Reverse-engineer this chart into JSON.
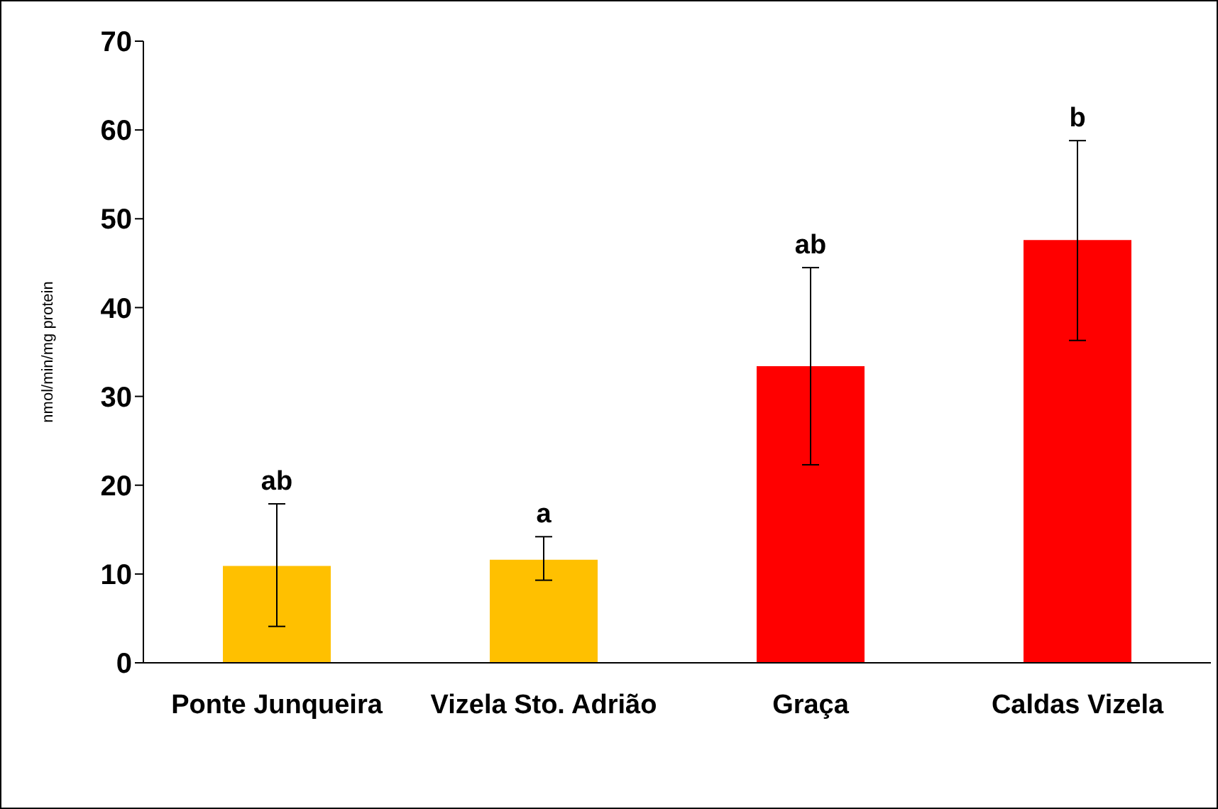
{
  "chart_data": {
    "type": "bar",
    "ylabel": "nmol/min/mg protein",
    "categories": [
      "Ponte Junqueira",
      "Vizela Sto. Adrião",
      "Graça",
      "Caldas Vizela"
    ],
    "values": [
      10.9,
      11.6,
      33.4,
      47.6
    ],
    "colors": [
      "#ffc000",
      "#ffc000",
      "#ff0000",
      "#ff0000"
    ],
    "errors": [
      [
        4.1,
        17.9
      ],
      [
        9.3,
        14.2
      ],
      [
        22.3,
        44.5
      ],
      [
        36.3,
        58.8
      ]
    ],
    "ylim": [
      0,
      70
    ],
    "yticks": [
      0,
      10,
      20,
      30,
      40,
      50,
      60,
      70
    ],
    "grid": false,
    "annotations": [
      {
        "text": "ab",
        "x": "Ponte Junqueira",
        "y": 17.9
      },
      {
        "text": "a",
        "x": "Vizela Sto. Adrião",
        "y": 14.2
      },
      {
        "text": "ab",
        "x": "Graça",
        "y": 44.5
      },
      {
        "text": "b",
        "x": "Caldas Vizela",
        "y": 58.8
      }
    ]
  }
}
